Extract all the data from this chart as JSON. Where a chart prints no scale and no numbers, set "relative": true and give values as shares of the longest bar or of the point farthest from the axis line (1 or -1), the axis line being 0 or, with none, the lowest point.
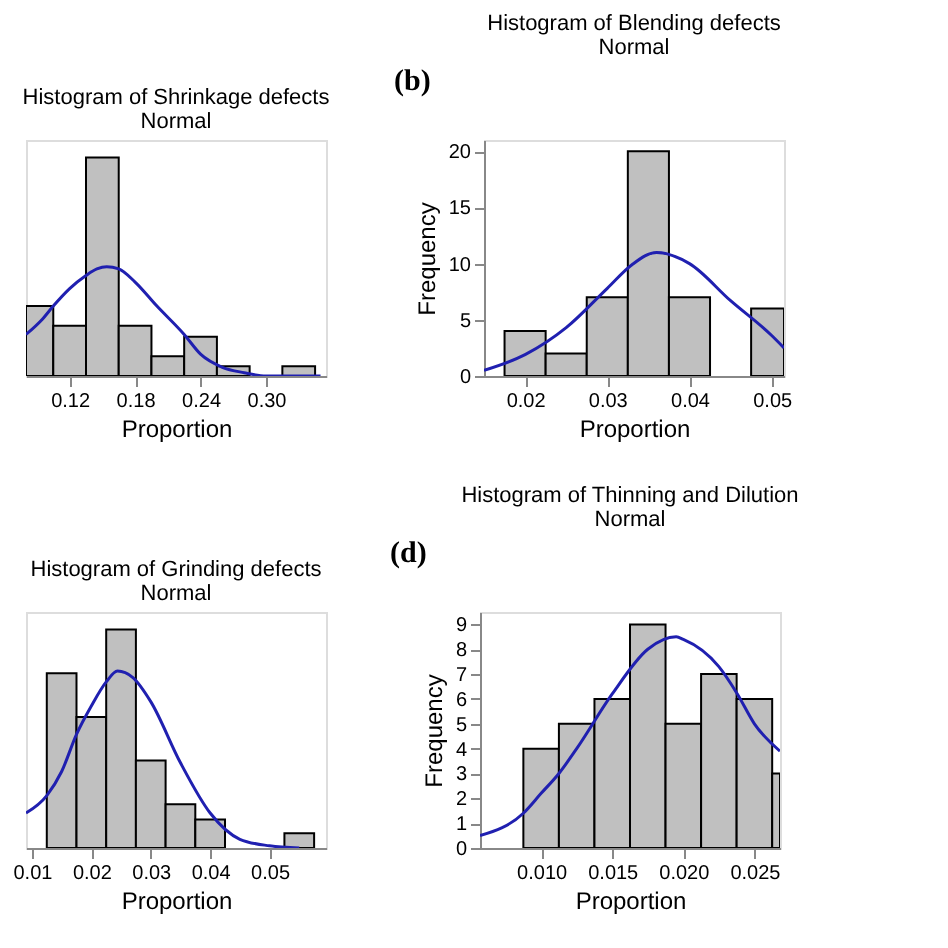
{
  "chart_data": [
    {
      "type": "histogram",
      "title": "Histogram of Shrinkage defects",
      "subtitle": "Normal",
      "xlabel": "Proportion",
      "relative": true,
      "grid": false,
      "xlim": [
        0.08,
        0.355
      ],
      "xticks": [
        0.12,
        0.18,
        0.24,
        {
          "value": 0.3,
          "label": "0.30"
        }
      ],
      "series": [
        {
          "type": "histogram",
          "color": "#c0c0c0",
          "bins": [
            0.08,
            0.105,
            0.135,
            0.165,
            0.195,
            0.225,
            0.255,
            0.285,
            0.315,
            0.345
          ],
          "values": [
            0.32,
            0.23,
            1,
            0.23,
            0.09,
            0.18,
            0.045,
            0,
            0.045
          ]
        },
        {
          "type": "line",
          "color": "#2020b0",
          "x": [
            0.08,
            0.095,
            0.105,
            0.12,
            0.135,
            0.145,
            0.154,
            0.165,
            0.18,
            0.2,
            0.225,
            0.24,
            0.26,
            0.28,
            0.3,
            0.35
          ],
          "values": [
            0.19,
            0.26,
            0.32,
            0.4,
            0.46,
            0.49,
            0.5,
            0.49,
            0.43,
            0.32,
            0.19,
            0.1,
            0.04,
            0.015,
            0,
            0
          ]
        }
      ]
    },
    {
      "type": "histogram",
      "title": "Histogram of Blending defects",
      "subtitle": "Normal",
      "xlabel": "Proportion",
      "ylabel": "Frequency",
      "annotations": [
        "(b)"
      ],
      "grid": false,
      "xlim": [
        0.015,
        0.0515
      ],
      "xticks": [
        0.02,
        0.03,
        0.04,
        0.05
      ],
      "ylim": [
        0,
        21
      ],
      "yticks": [
        0,
        5,
        10,
        15,
        20
      ],
      "series": [
        {
          "type": "histogram",
          "color": "#c0c0c0",
          "bins": [
            0.0175,
            0.0225,
            0.0275,
            0.0325,
            0.0375,
            0.0425,
            0.0475,
            0.0515
          ],
          "values": [
            4,
            2,
            7,
            20,
            7,
            0,
            6
          ]
        },
        {
          "type": "line",
          "color": "#2020b0",
          "x": [
            0.015,
            0.02,
            0.025,
            0.03,
            0.033,
            0.036,
            0.04,
            0.045,
            0.05,
            0.0515
          ],
          "values": [
            0.5,
            1.9,
            4.3,
            7.8,
            9.9,
            11,
            10,
            6.7,
            3.6,
            2.5
          ]
        }
      ]
    },
    {
      "type": "histogram",
      "title": "Histogram of Grinding defects",
      "subtitle": "Normal",
      "xlabel": "Proportion",
      "relative": true,
      "grid": false,
      "xlim": [
        0.009,
        0.0595
      ],
      "xticks": [
        0.01,
        0.02,
        0.03,
        0.04,
        0.05
      ],
      "series": [
        {
          "type": "histogram",
          "color": "#c0c0c0",
          "bins": [
            0.0125,
            0.0175,
            0.0225,
            0.0275,
            0.0325,
            0.0375,
            0.0425,
            0.0475,
            0.0525,
            0.0575
          ],
          "values": [
            0.8,
            0.6,
            1,
            0.4,
            0.2,
            0.13,
            0,
            0,
            0.067
          ]
        },
        {
          "type": "line",
          "color": "#2020b0",
          "x": [
            0.009,
            0.0125,
            0.015,
            0.0175,
            0.02,
            0.0225,
            0.0244,
            0.027,
            0.03,
            0.035,
            0.04,
            0.045,
            0.05,
            0.055
          ],
          "values": [
            0.16,
            0.24,
            0.35,
            0.52,
            0.65,
            0.76,
            0.81,
            0.78,
            0.67,
            0.39,
            0.16,
            0.04,
            0.01,
            0
          ]
        }
      ]
    },
    {
      "type": "histogram",
      "title": "Histogram of Thinning and Dilution",
      "subtitle": "Normal",
      "xlabel": "Proportion",
      "ylabel": "Frequency",
      "annotations": [
        "(d)"
      ],
      "grid": false,
      "xlim": [
        0.0057,
        0.0268
      ],
      "xticks": [
        {
          "value": 0.01,
          "label": "0.010"
        },
        {
          "value": 0.015,
          "label": "0.015"
        },
        {
          "value": 0.02,
          "label": "0.020"
        },
        {
          "value": 0.025,
          "label": "0.025"
        }
      ],
      "ylim": [
        0,
        9.5
      ],
      "yticks": [
        0,
        1,
        2,
        3,
        4,
        5,
        6,
        7,
        8,
        9
      ],
      "series": [
        {
          "type": "histogram",
          "color": "#c0c0c0",
          "bins": [
            0.00875,
            0.01125,
            0.01375,
            0.01625,
            0.01875,
            0.02125,
            0.02375,
            0.02625,
            0.0268
          ],
          "values": [
            4,
            5,
            6,
            9,
            5,
            7,
            6,
            3
          ]
        },
        {
          "type": "line",
          "color": "#2020b0",
          "x": [
            0.0057,
            0.00875,
            0.01,
            0.01125,
            0.0125,
            0.015,
            0.0175,
            0.0195,
            0.02,
            0.0225,
            0.0238,
            0.025,
            0.0268
          ],
          "values": [
            0.5,
            1.4,
            2.2,
            3,
            4,
            6.2,
            8,
            8.5,
            8.4,
            7.3,
            6.2,
            5,
            3.9
          ]
        }
      ]
    }
  ]
}
